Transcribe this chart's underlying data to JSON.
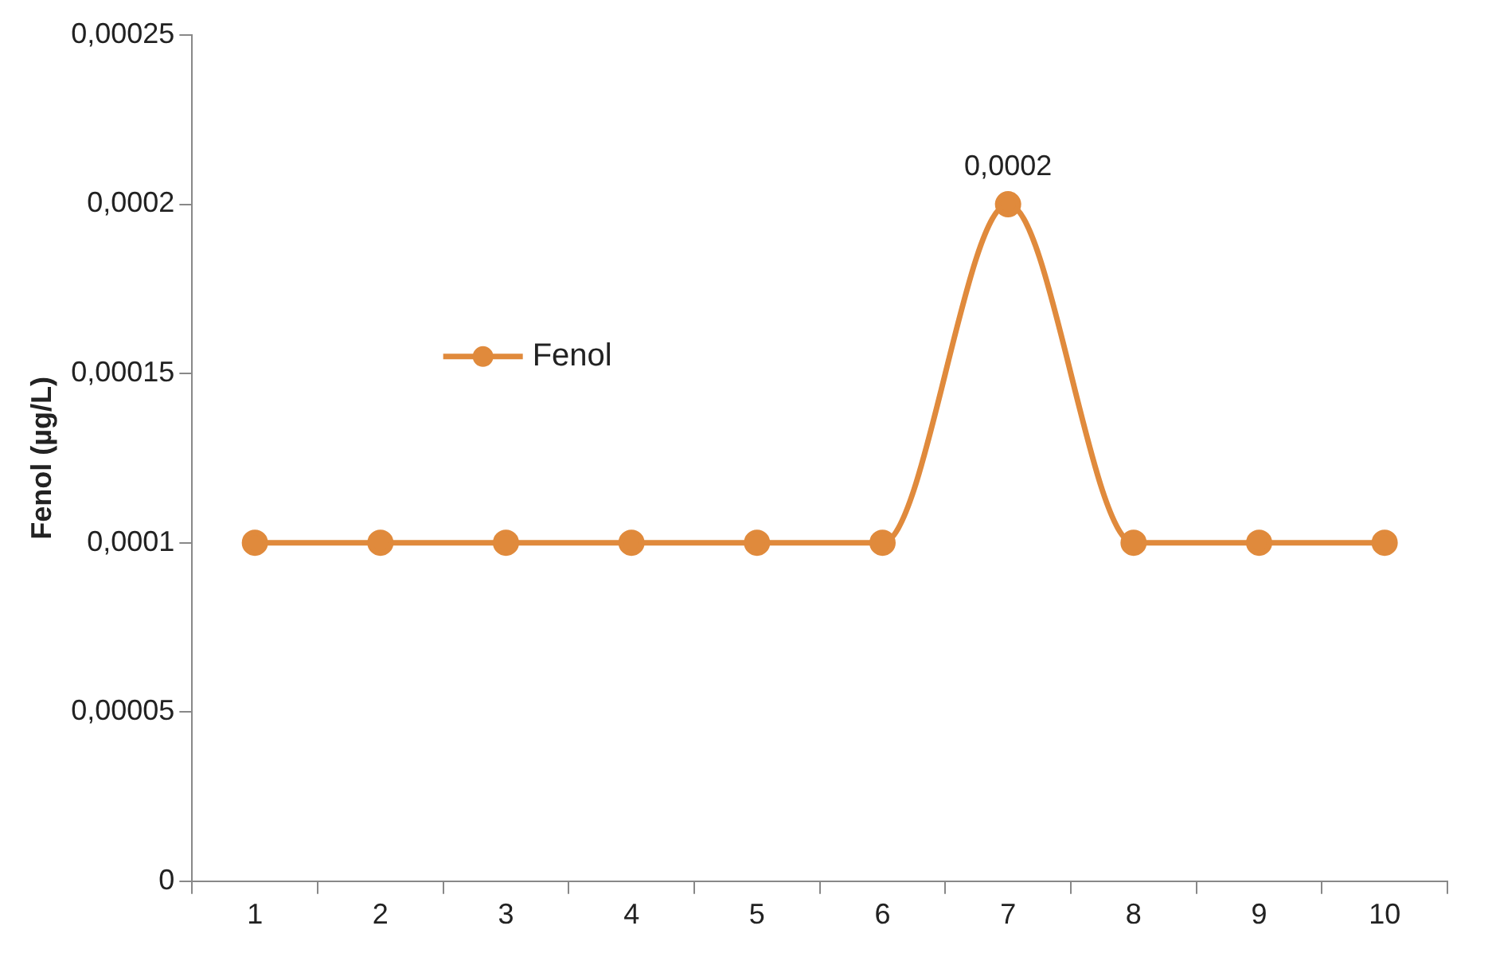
{
  "chart_data": {
    "type": "line",
    "ylabel": "Fenol (µg/L)",
    "categories": [
      "1",
      "2",
      "3",
      "4",
      "5",
      "6",
      "7",
      "8",
      "9",
      "10"
    ],
    "series": [
      {
        "name": "Fenol",
        "color": "#e08a3c",
        "values": [
          0.0001,
          0.0001,
          0.0001,
          0.0001,
          0.0001,
          0.0001,
          0.0002,
          0.0001,
          0.0001,
          0.0001
        ],
        "value_labels": [
          null,
          null,
          null,
          null,
          null,
          null,
          "0,0002",
          null,
          null,
          null
        ]
      }
    ],
    "ylim": [
      0,
      0.00025
    ],
    "yticks": [
      {
        "value": 0,
        "label": "0"
      },
      {
        "value": 5e-05,
        "label": "0,00005"
      },
      {
        "value": 0.0001,
        "label": "0,0001"
      },
      {
        "value": 0.00015,
        "label": "0,00015"
      },
      {
        "value": 0.0002,
        "label": "0,0002"
      },
      {
        "value": 0.00025,
        "label": "0,00025"
      }
    ],
    "grid": false,
    "legend": "top left",
    "marker": "circle",
    "line_style": "solid"
  }
}
